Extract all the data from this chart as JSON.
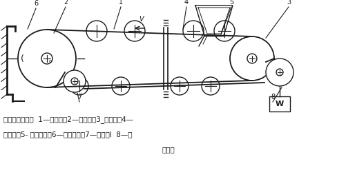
{
  "bg_color": "#ffffff",
  "line_color": "#1a1a1a",
  "figsize": [
    4.88,
    2.47
  ],
  "dpi": 100,
  "caption_line1": "带式输送机原理  1—输送带，2—驱动辊；3_从动辊，4—",
  "caption_line2": "承托辊；5- 装料装置》6—卸料装置；7—转向辊I  8—张",
  "caption_line3": "紧装置"
}
